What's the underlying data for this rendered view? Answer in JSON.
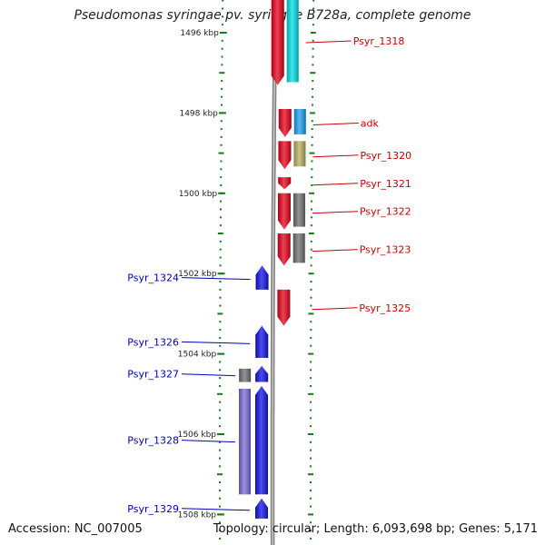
{
  "title": "Pseudomonas syringae pv. syringae B728a, complete genome",
  "footer": {
    "accession": "Accession: NC_007005",
    "summary": "Topology: circular; Length: 6,093,698 bp; Genes: 5,171"
  },
  "colors": {
    "forward": "#e8001a",
    "reverse": "#1010e8",
    "forward_label": "#cc0000",
    "reverse_label": "#0000bb",
    "tick": "#1a7a1a",
    "backbone": "#808080"
  },
  "scale": {
    "ticks": [
      {
        "label": "1496 kbp",
        "kbp": 1496
      },
      {
        "label": "1498 kbp",
        "kbp": 1498
      },
      {
        "label": "1500 kbp",
        "kbp": 1500
      },
      {
        "label": "1502 kbp",
        "kbp": 1502
      },
      {
        "label": "1504 kbp",
        "kbp": 1504
      },
      {
        "label": "1506 kbp",
        "kbp": 1506
      },
      {
        "label": "1508 kbp",
        "kbp": 1508
      }
    ]
  },
  "genes_forward": [
    {
      "name": "Psyr_1318",
      "start_kbp": 1494.9,
      "end_kbp": 1497.3,
      "cog_color": "#00e0e8"
    },
    {
      "name": "adk",
      "start_kbp": 1497.9,
      "end_kbp": 1498.6,
      "cog_color": "#1aa0f0"
    },
    {
      "name": "Psyr_1320",
      "start_kbp": 1498.7,
      "end_kbp": 1499.4,
      "cog_color": "#b8b060"
    },
    {
      "name": "Psyr_1321",
      "start_kbp": 1499.6,
      "end_kbp": 1499.9,
      "cog_color": null
    },
    {
      "name": "Psyr_1322",
      "start_kbp": 1500.0,
      "end_kbp": 1500.9,
      "cog_color": "#707070"
    },
    {
      "name": "Psyr_1323",
      "start_kbp": 1501.0,
      "end_kbp": 1501.8,
      "cog_color": "#707070"
    },
    {
      "name": "Psyr_1325",
      "start_kbp": 1502.4,
      "end_kbp": 1503.3,
      "cog_color": null
    }
  ],
  "genes_reverse": [
    {
      "name": "Psyr_1324",
      "start_kbp": 1501.8,
      "end_kbp": 1502.4,
      "cog_color": null
    },
    {
      "name": "Psyr_1326",
      "start_kbp": 1503.3,
      "end_kbp": 1504.1,
      "cog_color": null
    },
    {
      "name": "Psyr_1327",
      "start_kbp": 1504.3,
      "end_kbp": 1504.7,
      "cog_color": "#707070"
    },
    {
      "name": "Psyr_1328",
      "start_kbp": 1504.8,
      "end_kbp": 1507.5,
      "cog_color": "#7a6ad8"
    },
    {
      "name": "Psyr_1329",
      "start_kbp": 1507.6,
      "end_kbp": 1508.1,
      "cog_color": null
    }
  ]
}
